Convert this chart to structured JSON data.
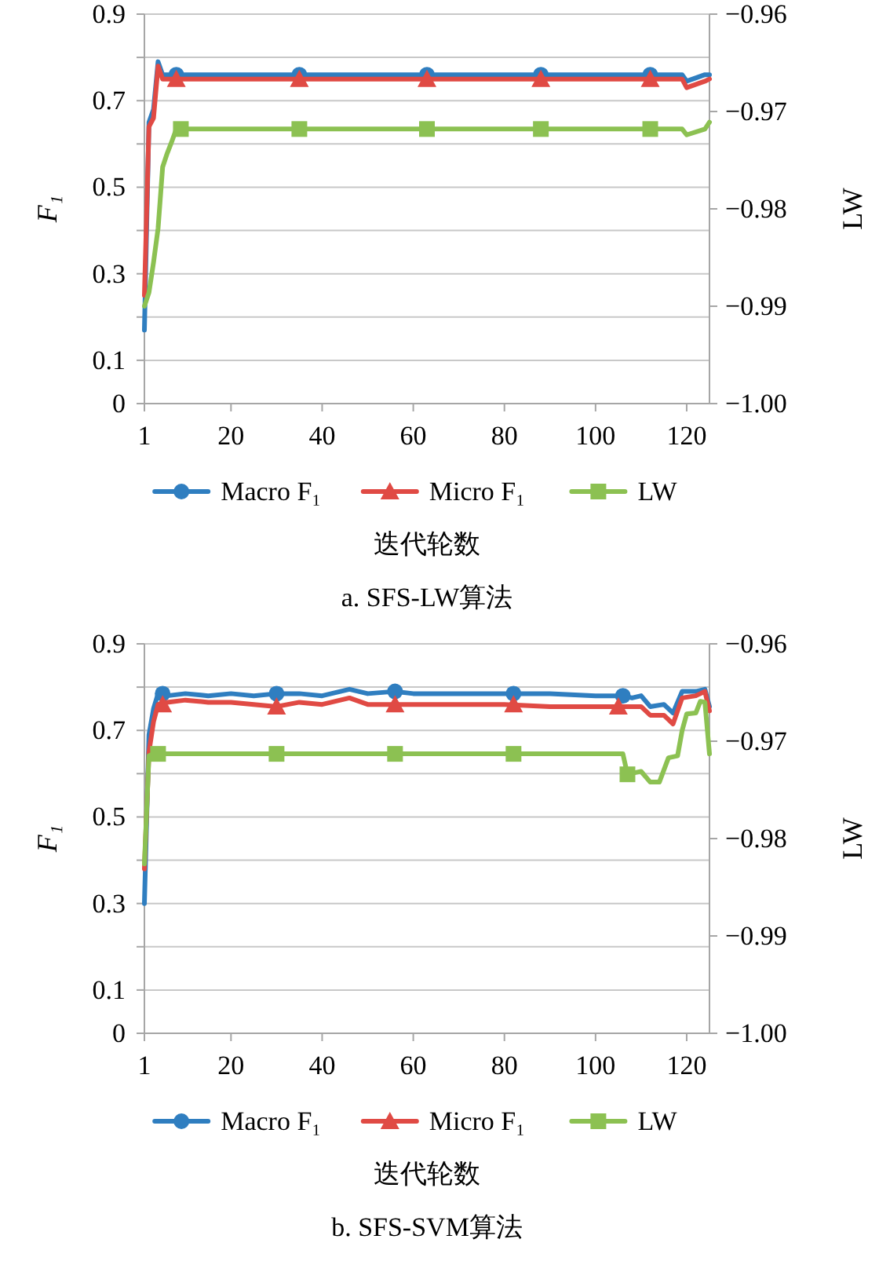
{
  "chart_data": [
    {
      "type": "line",
      "title": "a. SFS-LW算法",
      "xlabel": "迭代轮数",
      "ylabel": "F₁",
      "y2label": "LW",
      "xlim": [
        1,
        125
      ],
      "xticks": [
        1,
        20,
        40,
        60,
        80,
        100,
        120
      ],
      "ylim": [
        0,
        0.9
      ],
      "yticks": [
        0,
        0.1,
        {
          "value": 0.2,
          "label": null
        },
        0.3,
        {
          "value": 0.4,
          "label": null
        },
        0.5,
        {
          "value": 0.6,
          "label": null
        },
        0.7,
        {
          "value": 0.8,
          "label": null
        },
        0.9
      ],
      "y2lim": [
        -1,
        -0.96
      ],
      "y2ticks": [
        {
          "value": -1,
          "label": "−1.00"
        },
        {
          "value": -0.99,
          "label": "−0.99"
        },
        {
          "value": -0.98,
          "label": "−0.98"
        },
        {
          "value": -0.97,
          "label": "−0.97"
        },
        {
          "value": -0.96,
          "label": "−0.96"
        }
      ],
      "grid": "y",
      "legend": "bottom",
      "line_style": "solid",
      "series": [
        {
          "name": "Macro F₁",
          "type": "line",
          "marker": "none",
          "color": "#2f7ec0",
          "x": [
            1,
            2,
            3,
            4,
            5,
            119,
            120,
            124,
            125
          ],
          "values": [
            0.17,
            0.65,
            0.68,
            0.79,
            0.76,
            0.76,
            0.745,
            0.76,
            0.76
          ]
        },
        {
          "type": "scatter",
          "marker": "circle",
          "color": "#2f7ec0",
          "x": [
            8,
            35,
            63,
            88,
            112
          ],
          "values": [
            0.76,
            0.76,
            0.76,
            0.76,
            0.76
          ]
        },
        {
          "name": "Micro F₁",
          "type": "line",
          "marker": "none",
          "color": "#e04a44",
          "x": [
            1,
            2,
            3,
            4,
            5,
            119,
            120,
            124,
            125
          ],
          "values": [
            0.25,
            0.64,
            0.66,
            0.78,
            0.75,
            0.75,
            0.73,
            0.745,
            0.75
          ]
        },
        {
          "type": "scatter",
          "marker": "triangle",
          "color": "#e04a44",
          "x": [
            8,
            35,
            63,
            88,
            112
          ],
          "values": [
            0.75,
            0.75,
            0.75,
            0.75,
            0.75
          ]
        },
        {
          "name": "LW",
          "type": "line",
          "marker": "none",
          "axis": "y2",
          "color": "#8cc152",
          "x": [
            1,
            2,
            3,
            4,
            5,
            6,
            7,
            8,
            119,
            120,
            124,
            125
          ],
          "values": [
            -0.99,
            -0.9886,
            -0.9855,
            -0.982,
            -0.9757,
            -0.9743,
            -0.9731,
            -0.9718,
            -0.9718,
            -0.9724,
            -0.9718,
            -0.9711
          ]
        },
        {
          "type": "scatter",
          "marker": "square",
          "axis": "y2",
          "color": "#8cc152",
          "x": [
            9,
            35,
            63,
            88,
            112
          ],
          "values": [
            -0.9718,
            -0.9718,
            -0.9718,
            -0.9718,
            -0.9718
          ]
        }
      ]
    },
    {
      "type": "line",
      "title": "b. SFS-SVM算法",
      "xlabel": "迭代轮数",
      "ylabel": "F₁",
      "y2label": "LW",
      "xlim": [
        1,
        125
      ],
      "xticks": [
        1,
        20,
        40,
        60,
        80,
        100,
        120
      ],
      "ylim": [
        0,
        0.9
      ],
      "yticks": [
        0,
        0.1,
        {
          "value": 0.2,
          "label": null
        },
        0.3,
        {
          "value": 0.4,
          "label": null
        },
        0.5,
        {
          "value": 0.6,
          "label": null
        },
        0.7,
        {
          "value": 0.8,
          "label": null
        },
        0.9
      ],
      "y2lim": [
        -1,
        -0.96
      ],
      "y2ticks": [
        {
          "value": -1,
          "label": "−1.00"
        },
        {
          "value": -0.99,
          "label": "−0.99"
        },
        {
          "value": -0.98,
          "label": "−0.98"
        },
        {
          "value": -0.97,
          "label": "−0.97"
        },
        {
          "value": -0.96,
          "label": "−0.96"
        }
      ],
      "grid": "y",
      "legend": "bottom",
      "line_style": "solid",
      "series": [
        {
          "name": "Macro F₁",
          "type": "line",
          "marker": "none",
          "color": "#2f7ec0",
          "x": [
            1,
            2,
            3,
            4,
            6,
            10,
            15,
            20,
            25,
            30,
            35,
            40,
            46,
            50,
            56,
            60,
            70,
            80,
            90,
            100,
            106,
            108,
            110,
            112,
            115,
            117,
            119,
            122,
            124,
            125
          ],
          "values": [
            0.3,
            0.69,
            0.75,
            0.785,
            0.78,
            0.785,
            0.78,
            0.785,
            0.78,
            0.785,
            0.785,
            0.78,
            0.795,
            0.785,
            0.79,
            0.785,
            0.785,
            0.785,
            0.785,
            0.78,
            0.78,
            0.775,
            0.78,
            0.755,
            0.76,
            0.74,
            0.79,
            0.79,
            0.795,
            0.755
          ]
        },
        {
          "type": "scatter",
          "marker": "circle",
          "color": "#2f7ec0",
          "x": [
            5,
            30,
            56,
            82,
            106
          ],
          "values": [
            0.785,
            0.785,
            0.79,
            0.785,
            0.78
          ]
        },
        {
          "name": "Micro F₁",
          "type": "line",
          "marker": "none",
          "color": "#e04a44",
          "x": [
            1,
            2,
            3,
            4,
            6,
            10,
            15,
            20,
            25,
            30,
            35,
            40,
            46,
            50,
            56,
            60,
            70,
            80,
            90,
            100,
            106,
            108,
            110,
            112,
            115,
            117,
            119,
            122,
            124,
            125
          ],
          "values": [
            0.38,
            0.65,
            0.72,
            0.76,
            0.765,
            0.77,
            0.765,
            0.765,
            0.76,
            0.755,
            0.765,
            0.76,
            0.775,
            0.76,
            0.76,
            0.76,
            0.76,
            0.76,
            0.755,
            0.755,
            0.755,
            0.755,
            0.755,
            0.735,
            0.735,
            0.715,
            0.775,
            0.78,
            0.79,
            0.745
          ]
        },
        {
          "type": "scatter",
          "marker": "triangle",
          "color": "#e04a44",
          "x": [
            5,
            30,
            56,
            82,
            105
          ],
          "values": [
            0.76,
            0.755,
            0.76,
            0.76,
            0.755
          ]
        },
        {
          "name": "LW",
          "type": "line",
          "marker": "none",
          "axis": "y2",
          "color": "#8cc152",
          "x": [
            1,
            2,
            3,
            105,
            106,
            107,
            110,
            112,
            114,
            116,
            118,
            119,
            120,
            122,
            123,
            124,
            125
          ],
          "values": [
            -0.9826,
            -0.9715,
            -0.9713,
            -0.9713,
            -0.9713,
            -0.9734,
            -0.9731,
            -0.9742,
            -0.9742,
            -0.9717,
            -0.9715,
            -0.9689,
            -0.9672,
            -0.9671,
            -0.9659,
            -0.966,
            -0.9713
          ]
        },
        {
          "type": "scatter",
          "marker": "square",
          "axis": "y2",
          "color": "#8cc152",
          "x": [
            4,
            30,
            56,
            82,
            107
          ],
          "values": [
            -0.9713,
            -0.9713,
            -0.9713,
            -0.9713,
            -0.9734
          ]
        }
      ]
    }
  ]
}
